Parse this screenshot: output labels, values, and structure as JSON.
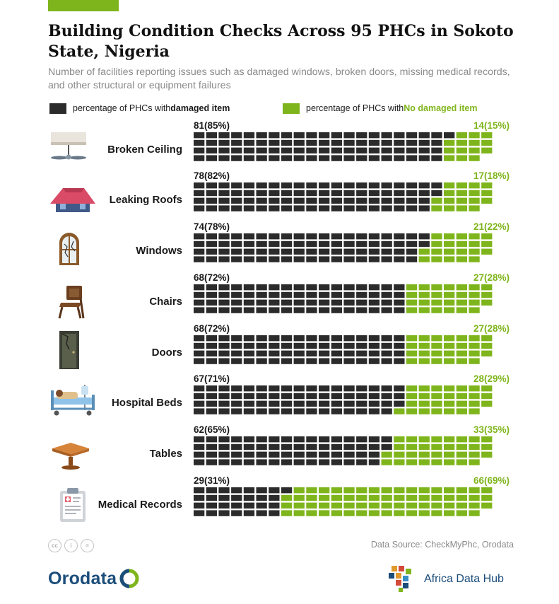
{
  "header": {
    "title": "Building Condition Checks Across 95 PHCs in Sokoto State, Nigeria",
    "subtitle": "Number of facilities reporting issues such as damaged windows, broken doors, missing medical records, and other structural or equipment failures"
  },
  "legend": {
    "damaged_prefix": "percentage of PHCs with ",
    "damaged_bold": "damaged item",
    "ok_prefix": "percentage of PHCs with ",
    "ok_bold": "No damaged item"
  },
  "colors": {
    "damaged": "#2b2b2b",
    "ok": "#7fb51c",
    "accent_bar": "#7fb51c"
  },
  "chart_data": {
    "type": "waffle",
    "total": 95,
    "series": [
      {
        "name": "percentage of PHCs with damaged item",
        "color": "#2b2b2b"
      },
      {
        "name": "percentage of PHCs with No damaged item",
        "color": "#7fb51c"
      }
    ],
    "rows": [
      {
        "label": "Broken Ceiling",
        "icon": "ceiling-fan-icon",
        "damaged": 81,
        "damaged_pct": "(85%)",
        "ok": 14,
        "ok_pct": "(15%)"
      },
      {
        "label": "Leaking Roofs",
        "icon": "roof-icon",
        "damaged": 78,
        "damaged_pct": "(82%)",
        "ok": 17,
        "ok_pct": "(18%)"
      },
      {
        "label": "Windows",
        "icon": "window-icon",
        "damaged": 74,
        "damaged_pct": "(78%)",
        "ok": 21,
        "ok_pct": "(22%)"
      },
      {
        "label": "Chairs",
        "icon": "chair-icon",
        "damaged": 68,
        "damaged_pct": "(72%)",
        "ok": 27,
        "ok_pct": "(28%)"
      },
      {
        "label": "Doors",
        "icon": "door-icon",
        "damaged": 68,
        "damaged_pct": "(72%)",
        "ok": 27,
        "ok_pct": "(28%)"
      },
      {
        "label": "Hospital Beds",
        "icon": "hospital-bed-icon",
        "damaged": 67,
        "damaged_pct": "(71%)",
        "ok": 28,
        "ok_pct": "(29%)"
      },
      {
        "label": "Tables",
        "icon": "table-icon",
        "damaged": 62,
        "damaged_pct": "(65%)",
        "ok": 33,
        "ok_pct": "(35%)"
      },
      {
        "label": "Medical Records",
        "icon": "clipboard-icon",
        "damaged": 29,
        "damaged_pct": "(31%)",
        "ok": 66,
        "ok_pct": "(69%)"
      }
    ]
  },
  "footer": {
    "source": "Data Source: CheckMyPhc, Orodata",
    "brand_left": "Orodata",
    "brand_right": "Africa Data Hub",
    "license_icons": [
      "cc-icon",
      "by-icon",
      "nd-icon"
    ]
  }
}
